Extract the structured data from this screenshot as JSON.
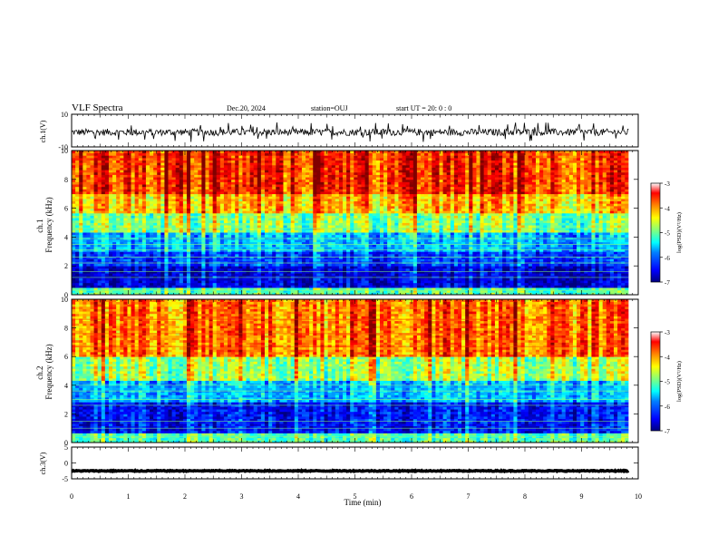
{
  "header": {
    "title": "VLF Spectra",
    "date": "Dec.20, 2024",
    "station": "station=OUJ",
    "start_ut": "start  UT  =   20: 0  : 0"
  },
  "chart_data": [
    {
      "type": "line",
      "title": "",
      "ylabel": "ch.1(V)",
      "ylim": [
        -10,
        10
      ],
      "yticks": [
        {
          "value": 10,
          "label": "10"
        },
        {
          "value": -10,
          "label": "-10"
        }
      ],
      "series": [
        {
          "values_desc": "noisy signal oscillating around ~ -1 V, amplitude ~ +/-3 V with occasional spikes",
          "baseline": -1,
          "amplitude": 3
        }
      ]
    },
    {
      "type": "heatmap",
      "ylabel": "ch.1\nFrequency (kHz)",
      "ylim": [
        0,
        10
      ],
      "yticks": [
        {
          "value": 0,
          "label": "0"
        },
        {
          "value": 2,
          "label": "2"
        },
        {
          "value": 4,
          "label": "4"
        },
        {
          "value": 6,
          "label": "6"
        },
        {
          "value": 8,
          "label": "8"
        },
        {
          "value": 10,
          "label": "10"
        }
      ],
      "colorbar": {
        "label": "log(PSD)(V²/Hz)",
        "range": [
          -7,
          -3
        ],
        "ticks": [
          {
            "value": -3,
            "label": "-3"
          },
          {
            "value": -4,
            "label": "-4"
          },
          {
            "value": -5,
            "label": "-5"
          },
          {
            "value": -6,
            "label": "-6"
          },
          {
            "value": -7,
            "label": "-7"
          }
        ]
      },
      "bands": [
        {
          "f0": 0,
          "f1": 0.5,
          "level": -5.2
        },
        {
          "f0": 0.5,
          "f1": 2.0,
          "level": -6.7
        },
        {
          "f0": 2.0,
          "f1": 3.0,
          "level": -6.3
        },
        {
          "f0": 3.0,
          "f1": 4.3,
          "level": -5.8
        },
        {
          "f0": 4.3,
          "f1": 5.6,
          "level": -5.0
        },
        {
          "f0": 5.6,
          "f1": 7.0,
          "level": -4.3
        },
        {
          "f0": 7.0,
          "f1": 10.0,
          "level": -3.7
        }
      ]
    },
    {
      "type": "heatmap",
      "ylabel": "ch.2\nFrequency (kHz)",
      "ylim": [
        0,
        10
      ],
      "yticks": [
        {
          "value": 0,
          "label": "0"
        },
        {
          "value": 2,
          "label": "2"
        },
        {
          "value": 4,
          "label": "4"
        },
        {
          "value": 6,
          "label": "6"
        },
        {
          "value": 8,
          "label": "8"
        },
        {
          "value": 10,
          "label": "10"
        }
      ],
      "colorbar": {
        "label": "log(PSD)(V²/Hz)",
        "range": [
          -7,
          -3
        ],
        "ticks": [
          {
            "value": -3,
            "label": "-3"
          },
          {
            "value": -4,
            "label": "-4"
          },
          {
            "value": -5,
            "label": "-5"
          },
          {
            "value": -6,
            "label": "-6"
          },
          {
            "value": -7,
            "label": "-7"
          }
        ]
      },
      "bands": [
        {
          "f0": 0,
          "f1": 0.6,
          "level": -5.2
        },
        {
          "f0": 0.6,
          "f1": 2.8,
          "level": -6.5
        },
        {
          "f0": 2.8,
          "f1": 4.3,
          "level": -5.8
        },
        {
          "f0": 4.3,
          "f1": 6.0,
          "level": -4.9
        },
        {
          "f0": 6.0,
          "f1": 10.0,
          "level": -4.0
        }
      ]
    },
    {
      "type": "line",
      "ylabel": "ch.3(V)",
      "ylim": [
        -5,
        5
      ],
      "yticks": [
        {
          "value": 5,
          "label": "5"
        },
        {
          "value": 0,
          "label": "0"
        },
        {
          "value": -5,
          "label": "-5"
        }
      ],
      "series": [
        {
          "values_desc": "nearly constant signal near -2.5 V",
          "baseline": -2.5,
          "amplitude": 0.3
        }
      ]
    }
  ],
  "x_axis": {
    "label": "Time (min)",
    "range": [
      0,
      10
    ],
    "ticks": [
      "0",
      "1",
      "2",
      "3",
      "4",
      "5",
      "6",
      "7",
      "8",
      "9",
      "10"
    ],
    "data_end": 9.83
  },
  "colors": {
    "scale": [
      "#00007f",
      "#0000ff",
      "#0080ff",
      "#00ffff",
      "#80ff80",
      "#ffff00",
      "#ff8000",
      "#ff0000",
      "#800000"
    ],
    "trace": "#000000"
  }
}
